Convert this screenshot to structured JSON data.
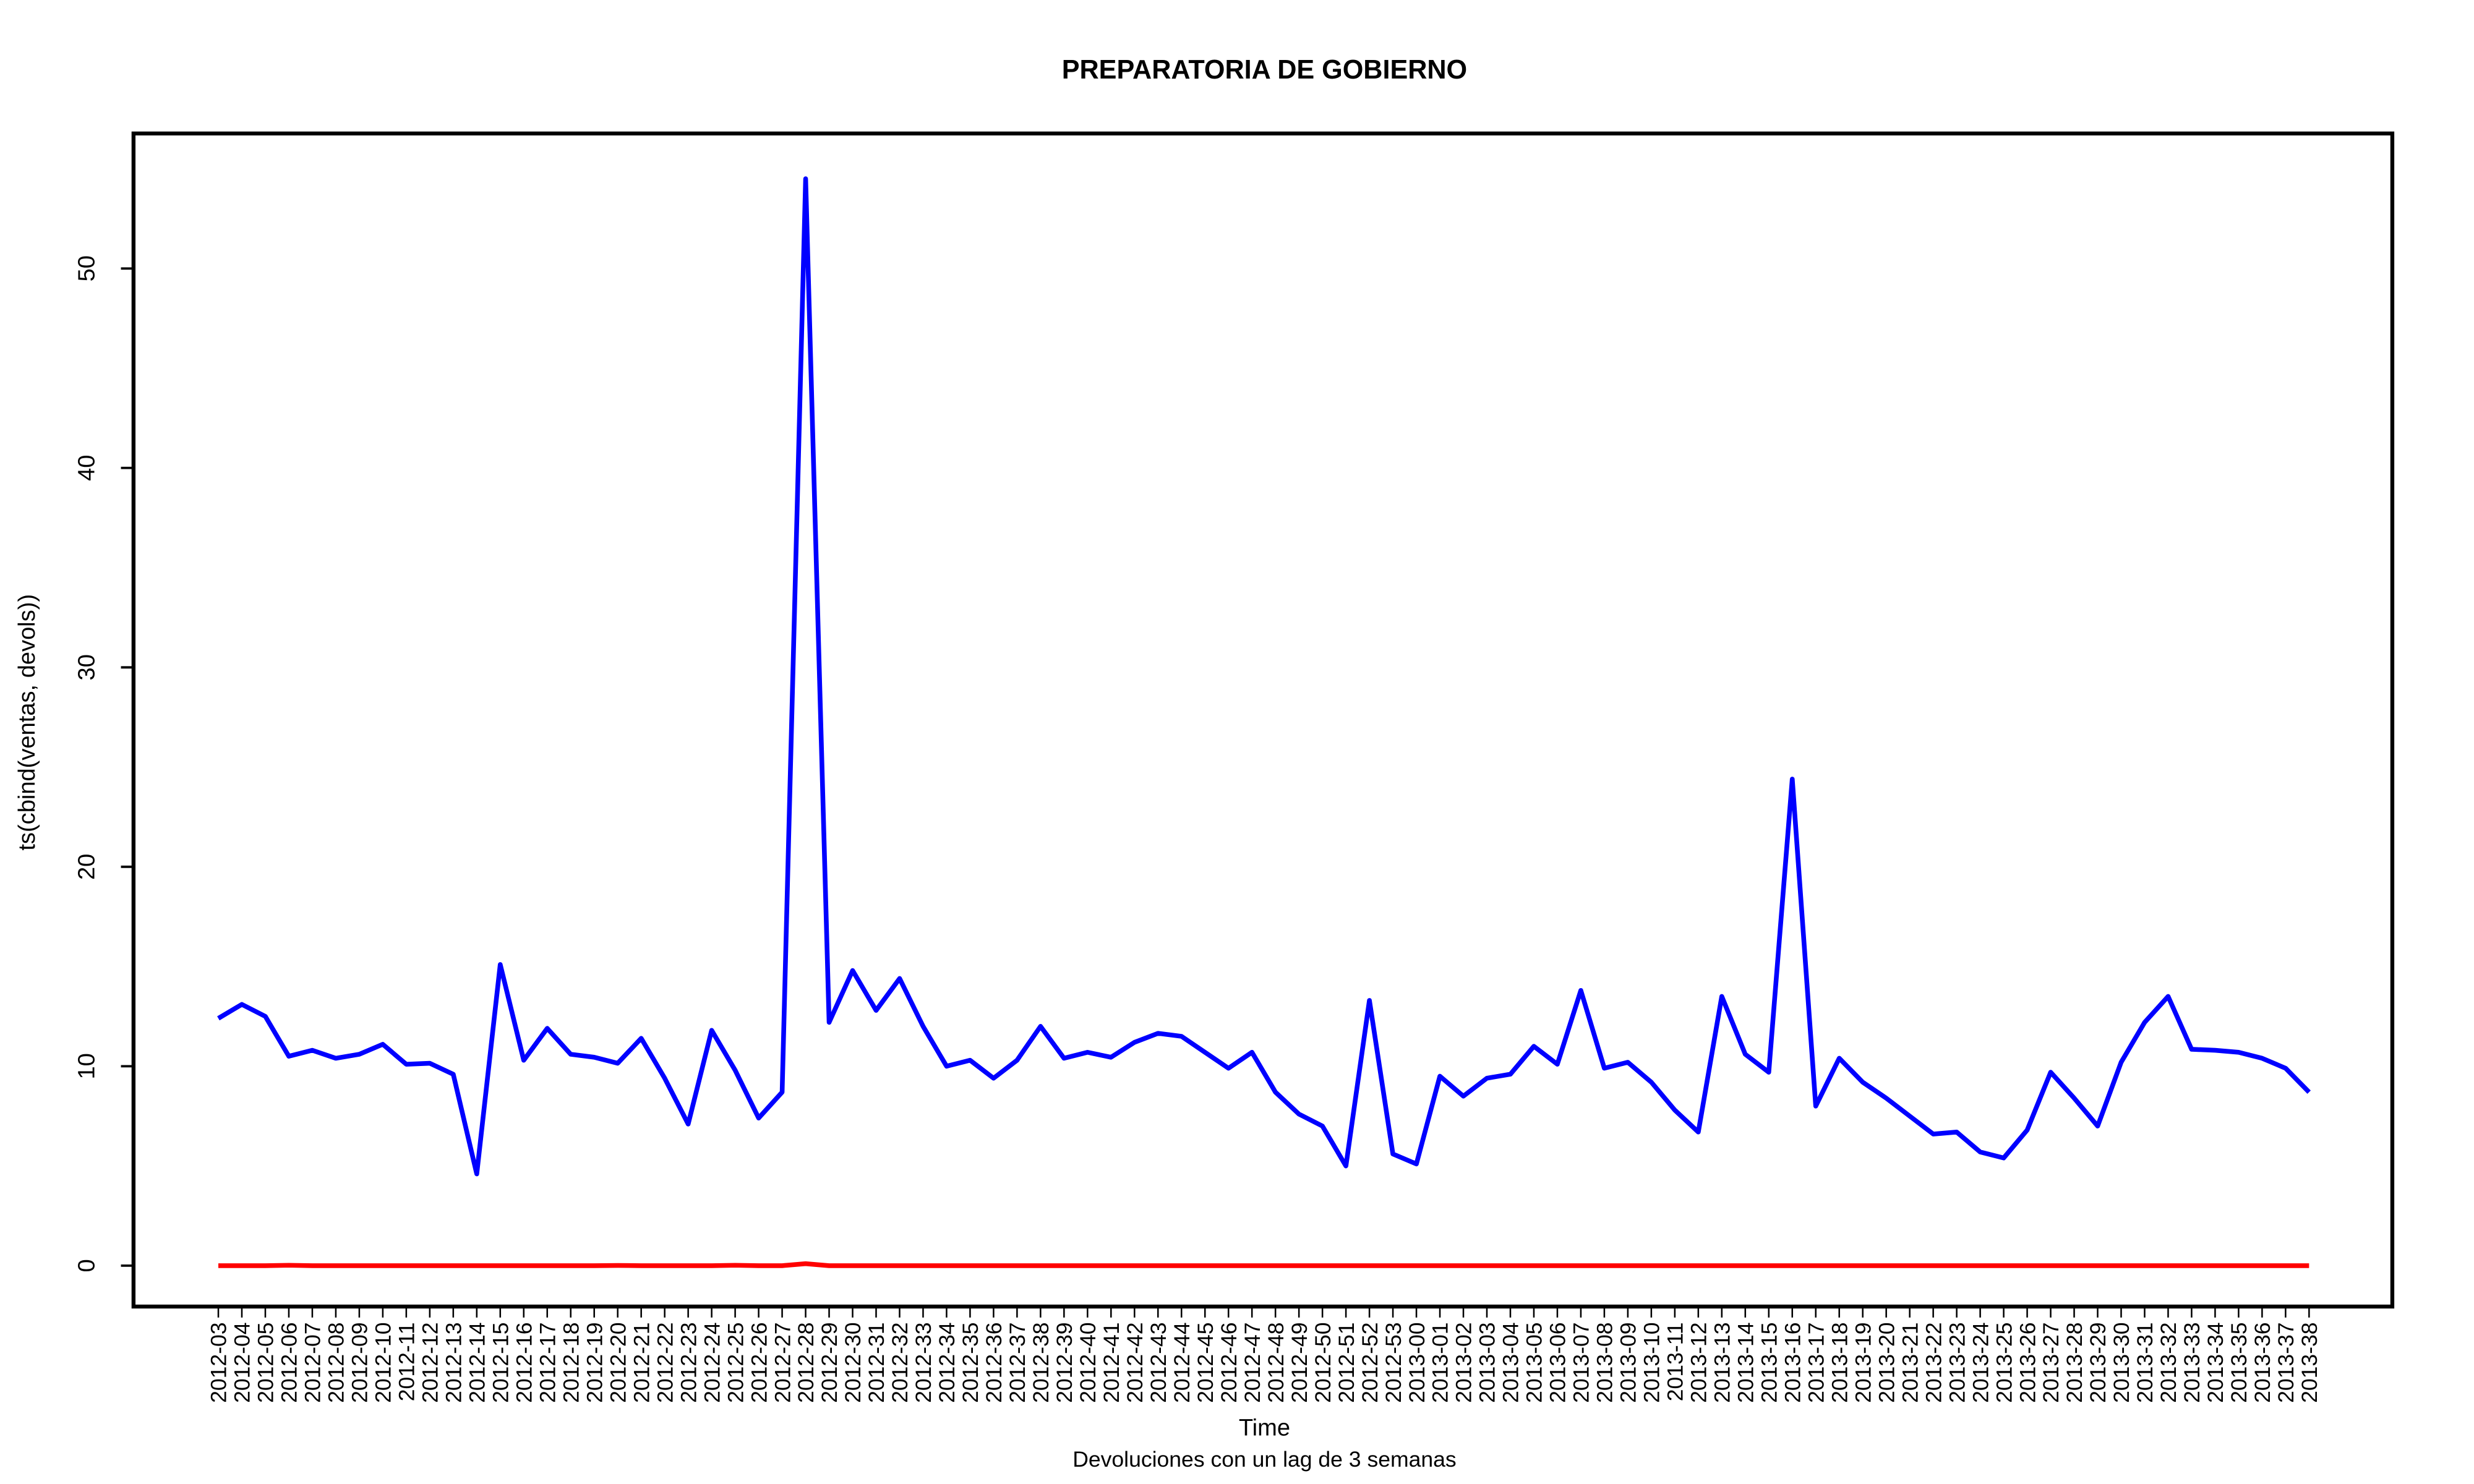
{
  "chart_data": {
    "type": "line",
    "title": "PREPARATORIA DE GOBIERNO",
    "y_label": "ts(cbind(ventas, devols))",
    "x_label": "Time",
    "subtitle": "Devoluciones con un lag de 3 semanas",
    "categories": [
      "2012-03",
      "2012-04",
      "2012-05",
      "2012-06",
      "2012-07",
      "2012-08",
      "2012-09",
      "2012-10",
      "2012-11",
      "2012-12",
      "2012-13",
      "2012-14",
      "2012-15",
      "2012-16",
      "2012-17",
      "2012-18",
      "2012-19",
      "2012-20",
      "2012-21",
      "2012-22",
      "2012-23",
      "2012-24",
      "2012-25",
      "2012-26",
      "2012-27",
      "2012-28",
      "2012-29",
      "2012-30",
      "2012-31",
      "2012-32",
      "2012-33",
      "2012-34",
      "2012-35",
      "2012-36",
      "2012-37",
      "2012-38",
      "2012-39",
      "2012-40",
      "2012-41",
      "2012-42",
      "2012-43",
      "2012-44",
      "2012-45",
      "2012-46",
      "2012-47",
      "2012-48",
      "2012-49",
      "2012-50",
      "2012-51",
      "2012-52",
      "2012-53",
      "2013-00",
      "2013-01",
      "2013-02",
      "2013-03",
      "2013-04",
      "2013-05",
      "2013-06",
      "2013-07",
      "2013-08",
      "2013-09",
      "2013-10",
      "2013-11",
      "2013-12",
      "2013-13",
      "2013-14",
      "2013-15",
      "2013-16",
      "2013-17",
      "2013-18",
      "2013-19",
      "2013-20",
      "2013-21",
      "2013-22",
      "2013-23",
      "2013-24",
      "2013-25",
      "2013-26",
      "2013-27",
      "2013-28",
      "2013-29",
      "2013-30",
      "2013-31",
      "2013-32",
      "2013-33",
      "2013-34",
      "2013-35",
      "2013-36",
      "2013-37",
      "2013-38"
    ],
    "series": [
      {
        "color": "#0000ff",
        "values": [
          12.4,
          13.1,
          12.5,
          10.5,
          10.8,
          10.4,
          10.6,
          11.1,
          10.1,
          10.15,
          9.6,
          4.6,
          15.1,
          10.3,
          11.9,
          10.6,
          10.45,
          10.15,
          11.4,
          9.4,
          7.1,
          11.8,
          9.8,
          7.4,
          8.7,
          54.5,
          12.2,
          14.8,
          12.8,
          14.4,
          12.0,
          10.0,
          10.3,
          9.4,
          10.3,
          12.0,
          10.4,
          10.7,
          10.45,
          11.2,
          11.65,
          11.5,
          10.7,
          9.9,
          10.7,
          8.7,
          7.6,
          7.0,
          5.0,
          13.3,
          5.6,
          5.1,
          9.5,
          8.5,
          9.4,
          9.6,
          11.0,
          10.1,
          13.8,
          9.9,
          10.2,
          9.2,
          7.8,
          6.7,
          13.5,
          10.6,
          9.7,
          24.4,
          8.0,
          10.4,
          9.2,
          8.4,
          7.5,
          6.6,
          6.7,
          5.7,
          5.4,
          6.8,
          9.7,
          8.4,
          7.0,
          10.2,
          12.2,
          13.5,
          10.85,
          10.8,
          10.7,
          10.4,
          9.9,
          8.7
        ]
      },
      {
        "color": "#ff0000",
        "values": [
          0,
          0,
          0,
          0.02,
          0,
          0,
          0,
          0,
          0,
          0,
          0,
          0,
          0,
          0,
          0,
          0,
          0,
          0.01,
          0,
          0,
          0,
          0,
          0.02,
          0,
          0,
          0.1,
          0,
          0,
          0,
          0,
          0,
          0,
          0,
          0,
          0,
          0,
          0,
          0,
          0,
          0,
          0,
          0,
          0,
          0,
          0,
          0,
          0,
          0,
          0,
          0,
          0,
          0,
          0,
          0,
          0,
          0,
          0,
          0,
          0,
          0,
          0,
          0,
          0,
          0,
          0,
          0,
          0,
          0,
          0,
          0,
          0,
          0,
          0,
          0,
          0,
          0,
          0,
          0,
          0,
          0,
          0,
          0,
          0,
          0,
          0,
          0,
          0,
          0,
          0,
          0
        ]
      }
    ],
    "ylim": [
      -2.05,
      56.77
    ],
    "yticks": [
      0,
      10,
      20,
      30,
      40,
      50
    ]
  }
}
